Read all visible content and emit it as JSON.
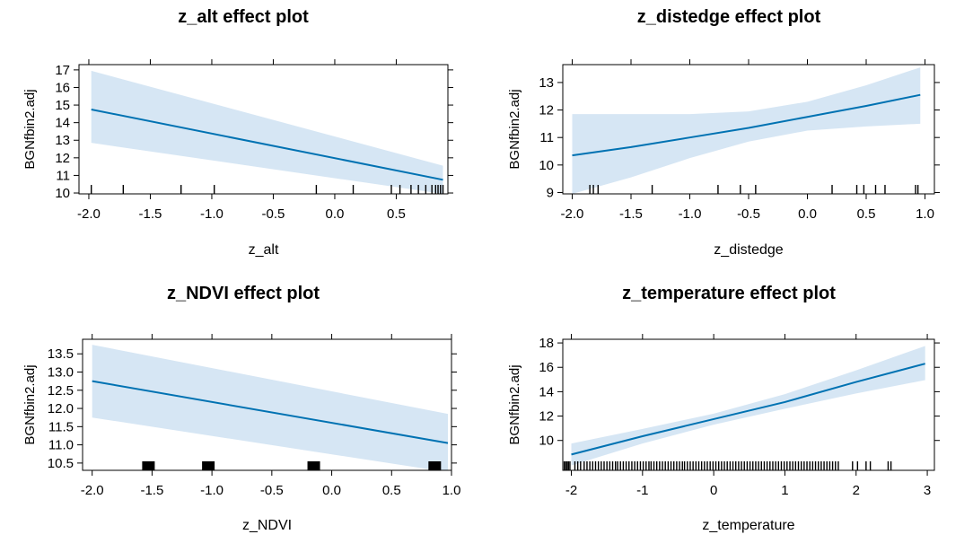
{
  "chart_data": [
    {
      "type": "line",
      "title": "z_alt effect plot",
      "xlabel": "z_alt",
      "ylabel": "BGNfbin2.adj",
      "xlim": [
        -2.08,
        0.92
      ],
      "ylim": [
        9.95,
        17.3
      ],
      "xticks": [
        -2.0,
        -1.5,
        -1.0,
        -0.5,
        0.0,
        0.5
      ],
      "xtick_labels": [
        "-2.0",
        "-1.5",
        "-1.0",
        "-0.5",
        "0.0",
        "0.5"
      ],
      "yticks": [
        10,
        11,
        12,
        13,
        14,
        15,
        16,
        17
      ],
      "ytick_labels": [
        "10",
        "11",
        "12",
        "13",
        "14",
        "15",
        "16",
        "17"
      ],
      "fit": {
        "x": [
          -1.98,
          0.88
        ],
        "y": [
          14.75,
          10.75
        ]
      },
      "ci_lower": {
        "x": [
          -1.98,
          0.88
        ],
        "y": [
          12.85,
          9.95
        ]
      },
      "ci_upper": {
        "x": [
          -1.98,
          0.88
        ],
        "y": [
          16.95,
          11.55
        ]
      },
      "rug": [
        -1.98,
        -1.72,
        -1.25,
        -0.98,
        -0.15,
        0.15,
        0.46,
        0.53,
        0.62,
        0.68,
        0.74,
        0.79,
        0.82,
        0.84,
        0.86,
        0.88
      ],
      "rug_style": "line",
      "colors": {
        "line": "#0072B2",
        "band": "#D6E6F4"
      }
    },
    {
      "type": "line",
      "title": "z_distedge effect plot",
      "xlabel": "z_distedge",
      "ylabel": "BGNfbin2.adj",
      "xlim": [
        -2.08,
        1.08
      ],
      "ylim": [
        8.95,
        13.65
      ],
      "xticks": [
        -2.0,
        -1.5,
        -1.0,
        -0.5,
        0.0,
        0.5,
        1.0
      ],
      "xtick_labels": [
        "-2.0",
        "-1.5",
        "-1.0",
        "-0.5",
        "0.0",
        "0.5",
        "1.0"
      ],
      "yticks": [
        9,
        10,
        11,
        12,
        13
      ],
      "ytick_labels": [
        "9",
        "10",
        "11",
        "12",
        "13"
      ],
      "fit": {
        "x": [
          -2.0,
          -1.5,
          -1.0,
          -0.5,
          0.0,
          0.5,
          0.96
        ],
        "y": [
          10.35,
          10.65,
          11.0,
          11.35,
          11.75,
          12.15,
          12.55
        ]
      },
      "ci_lower": {
        "x": [
          -2.0,
          -1.5,
          -1.0,
          -0.5,
          0.0,
          0.5,
          0.96
        ],
        "y": [
          8.95,
          9.55,
          10.25,
          10.85,
          11.25,
          11.4,
          11.5
        ]
      },
      "ci_upper": {
        "x": [
          -2.0,
          -1.5,
          -1.0,
          -0.5,
          0.0,
          0.5,
          0.96
        ],
        "y": [
          11.85,
          11.85,
          11.85,
          11.95,
          12.3,
          12.9,
          13.55
        ]
      },
      "rug": [
        -1.85,
        -1.82,
        -1.78,
        -1.32,
        -0.76,
        -0.57,
        -0.44,
        0.21,
        0.42,
        0.48,
        0.58,
        0.66,
        0.92,
        0.94
      ],
      "rug_style": "line",
      "colors": {
        "line": "#0072B2",
        "band": "#D6E6F4"
      }
    },
    {
      "type": "line",
      "title": "z_NDVI effect plot",
      "xlabel": "z_NDVI",
      "ylabel": "BGNfbin2.adj",
      "xlim": [
        -2.08,
        1.0
      ],
      "ylim": [
        10.3,
        13.9
      ],
      "xticks": [
        -2.0,
        -1.5,
        -1.0,
        -0.5,
        0.0,
        0.5,
        1.0
      ],
      "xtick_labels": [
        "-2.0",
        "-1.5",
        "-1.0",
        "-0.5",
        "0.0",
        "0.5",
        "1.0"
      ],
      "yticks": [
        10.5,
        11.0,
        11.5,
        12.0,
        12.5,
        13.0,
        13.5
      ],
      "ytick_labels": [
        "10.5",
        "11.0",
        "11.5",
        "12.0",
        "12.5",
        "13.0",
        "13.5"
      ],
      "fit": {
        "x": [
          -2.0,
          0.97
        ],
        "y": [
          12.75,
          11.05
        ]
      },
      "ci_lower": {
        "x": [
          -2.0,
          0.97
        ],
        "y": [
          11.75,
          10.25
        ]
      },
      "ci_upper": {
        "x": [
          -2.0,
          0.97
        ],
        "y": [
          13.75,
          11.85
        ]
      },
      "rug": [
        -1.53,
        -1.03,
        -0.15,
        0.86
      ],
      "rug_style": "block",
      "colors": {
        "line": "#0072B2",
        "band": "#D6E6F4"
      }
    },
    {
      "type": "line",
      "title": "z_temperature effect plot",
      "xlabel": "z_temperature",
      "ylabel": "BGNfbin2.adj",
      "xlim": [
        -2.12,
        3.1
      ],
      "ylim": [
        7.55,
        18.3
      ],
      "xticks": [
        -2,
        -1,
        0,
        1,
        2,
        3
      ],
      "xtick_labels": [
        "-2",
        "-1",
        "0",
        "1",
        "2",
        "3"
      ],
      "yticks": [
        10,
        12,
        14,
        16,
        18
      ],
      "ytick_labels": [
        "10",
        "12",
        "14",
        "16",
        "18"
      ],
      "fit": {
        "x": [
          -2.0,
          -1.0,
          0.0,
          1.0,
          2.0,
          2.97
        ],
        "y": [
          8.85,
          10.35,
          11.75,
          13.15,
          14.8,
          16.3
        ]
      },
      "ci_lower": {
        "x": [
          -2.0,
          -1.0,
          0.0,
          1.0,
          2.0,
          2.97
        ],
        "y": [
          7.95,
          9.75,
          11.3,
          12.6,
          13.85,
          14.95
        ]
      },
      "ci_upper": {
        "x": [
          -2.0,
          -1.0,
          0.0,
          1.0,
          2.0,
          2.97
        ],
        "y": [
          9.75,
          10.95,
          12.2,
          13.8,
          15.75,
          17.75
        ]
      },
      "rug": [
        -2.1,
        -2.08,
        -2.06,
        -2.04,
        -2.02,
        -1.95,
        -1.91,
        -1.87,
        -1.82,
        -1.78,
        -1.74,
        -1.7,
        -1.66,
        -1.62,
        -1.58,
        -1.54,
        -1.5,
        -1.46,
        -1.42,
        -1.38,
        -1.35,
        -1.31,
        -1.27,
        -1.23,
        -1.19,
        -1.15,
        -1.11,
        -1.07,
        -1.03,
        -0.99,
        -0.95,
        -0.91,
        -0.88,
        -0.84,
        -0.8,
        -0.76,
        -0.72,
        -0.68,
        -0.64,
        -0.6,
        -0.56,
        -0.52,
        -0.48,
        -0.44,
        -0.41,
        -0.37,
        -0.33,
        -0.29,
        -0.25,
        -0.21,
        -0.17,
        -0.13,
        -0.09,
        -0.05,
        -0.01,
        0.03,
        0.07,
        0.11,
        0.15,
        0.19,
        0.23,
        0.27,
        0.31,
        0.35,
        0.39,
        0.43,
        0.47,
        0.51,
        0.55,
        0.59,
        0.63,
        0.67,
        0.71,
        0.75,
        0.79,
        0.83,
        0.87,
        0.91,
        0.95,
        0.99,
        1.03,
        1.07,
        1.11,
        1.15,
        1.19,
        1.23,
        1.27,
        1.31,
        1.35,
        1.39,
        1.43,
        1.47,
        1.51,
        1.55,
        1.59,
        1.63,
        1.67,
        1.71,
        1.75,
        1.95,
        2.02,
        2.14,
        2.2,
        2.45,
        2.49
      ],
      "rug_style": "line",
      "colors": {
        "line": "#0072B2",
        "band": "#D6E6F4"
      }
    }
  ]
}
